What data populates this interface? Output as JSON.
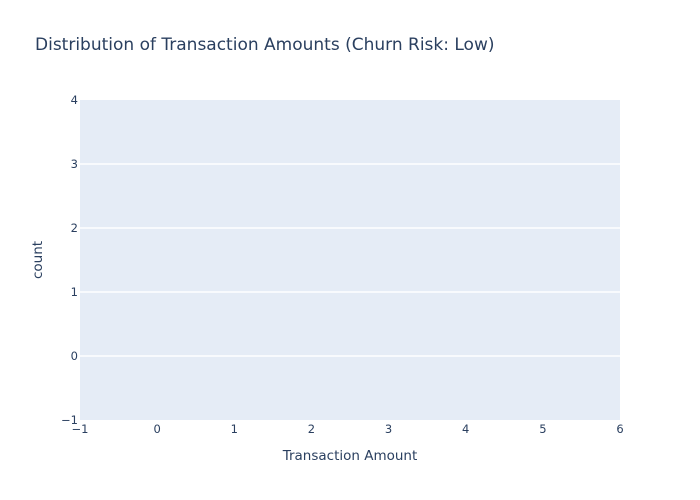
{
  "chart_data": {
    "type": "bar",
    "title": "Distribution of Transaction Amounts (Churn Risk: Low)",
    "xlabel": "Transaction Amount",
    "ylabel": "count",
    "xlim": [
      -1,
      6
    ],
    "ylim": [
      -1,
      4
    ],
    "x_ticks": [
      "−1",
      "0",
      "1",
      "2",
      "3",
      "4",
      "5",
      "6"
    ],
    "y_ticks": [
      "−1",
      "0",
      "1",
      "2",
      "3",
      "4"
    ],
    "x": [],
    "values": [],
    "grid": true,
    "legend": "none",
    "colors": {
      "plot_bg": "#e5ecf6",
      "grid": "#ffffff",
      "text": "#2a3f5f",
      "bar": "#636efa"
    }
  }
}
